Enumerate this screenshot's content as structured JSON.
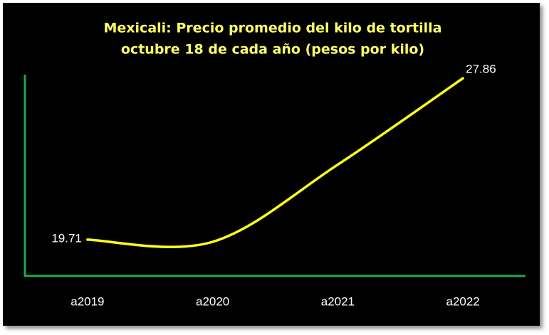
{
  "chart_data": {
    "type": "line",
    "title": "Mexicali: Precio promedio del kilo de tortilla",
    "subtitle": "octubre 18 de cada año (pesos por kilo)",
    "categories": [
      "a2019",
      "a2020",
      "a2021",
      "a2022"
    ],
    "values": [
      19.71,
      19.6,
      23.5,
      27.86
    ],
    "color": "#ffff1a",
    "axis_color": "#1fa84a",
    "title_color": "#ffff66",
    "background": "#000000",
    "smooth": true
  }
}
